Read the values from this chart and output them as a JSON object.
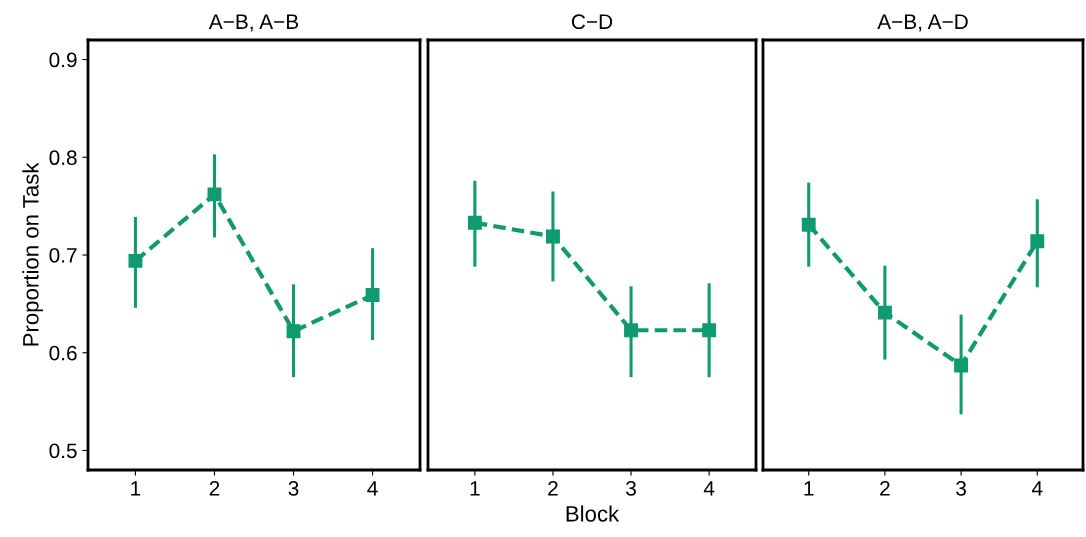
{
  "chart_data": [
    {
      "type": "line",
      "title": "A−B, A−B",
      "ylabel": "Proportion on Task",
      "categories": [
        "1",
        "2",
        "3",
        "4"
      ],
      "ylim": [
        0.48,
        0.92
      ],
      "yticks": [
        0.5,
        0.6,
        0.7,
        0.8,
        0.9
      ],
      "marker": "square",
      "line_style": "dashed",
      "series": [
        {
          "color": "#0f9b6e",
          "values": [
            0.694,
            0.762,
            0.622,
            0.659
          ],
          "errors": [
            [
              0.646,
              0.739
            ],
            [
              0.718,
              0.803
            ],
            [
              0.575,
              0.67
            ],
            [
              0.613,
              0.707
            ]
          ]
        }
      ]
    },
    {
      "type": "line",
      "title": "C−D",
      "xlabel": "Block",
      "categories": [
        "1",
        "2",
        "3",
        "4"
      ],
      "ylim": [
        0.48,
        0.92
      ],
      "yticks": [
        0.5,
        0.6,
        0.7,
        0.8,
        0.9
      ],
      "tick_labels": "x",
      "marker": "square",
      "line_style": "dashed",
      "series": [
        {
          "color": "#0f9b6e",
          "values": [
            0.733,
            0.719,
            0.623,
            0.623
          ],
          "errors": [
            [
              0.688,
              0.776
            ],
            [
              0.673,
              0.765
            ],
            [
              0.575,
              0.668
            ],
            [
              0.575,
              0.671
            ]
          ]
        }
      ]
    },
    {
      "type": "line",
      "title": "A−B, A−D",
      "categories": [
        "1",
        "2",
        "3",
        "4"
      ],
      "ylim": [
        0.48,
        0.92
      ],
      "yticks": [
        0.5,
        0.6,
        0.7,
        0.8,
        0.9
      ],
      "tick_labels": "x",
      "marker": "square",
      "line_style": "dashed",
      "series": [
        {
          "color": "#0f9b6e",
          "values": [
            0.731,
            0.641,
            0.587,
            0.714
          ],
          "errors": [
            [
              0.688,
              0.774
            ],
            [
              0.593,
              0.689
            ],
            [
              0.537,
              0.639
            ],
            [
              0.667,
              0.757
            ]
          ]
        }
      ]
    }
  ]
}
